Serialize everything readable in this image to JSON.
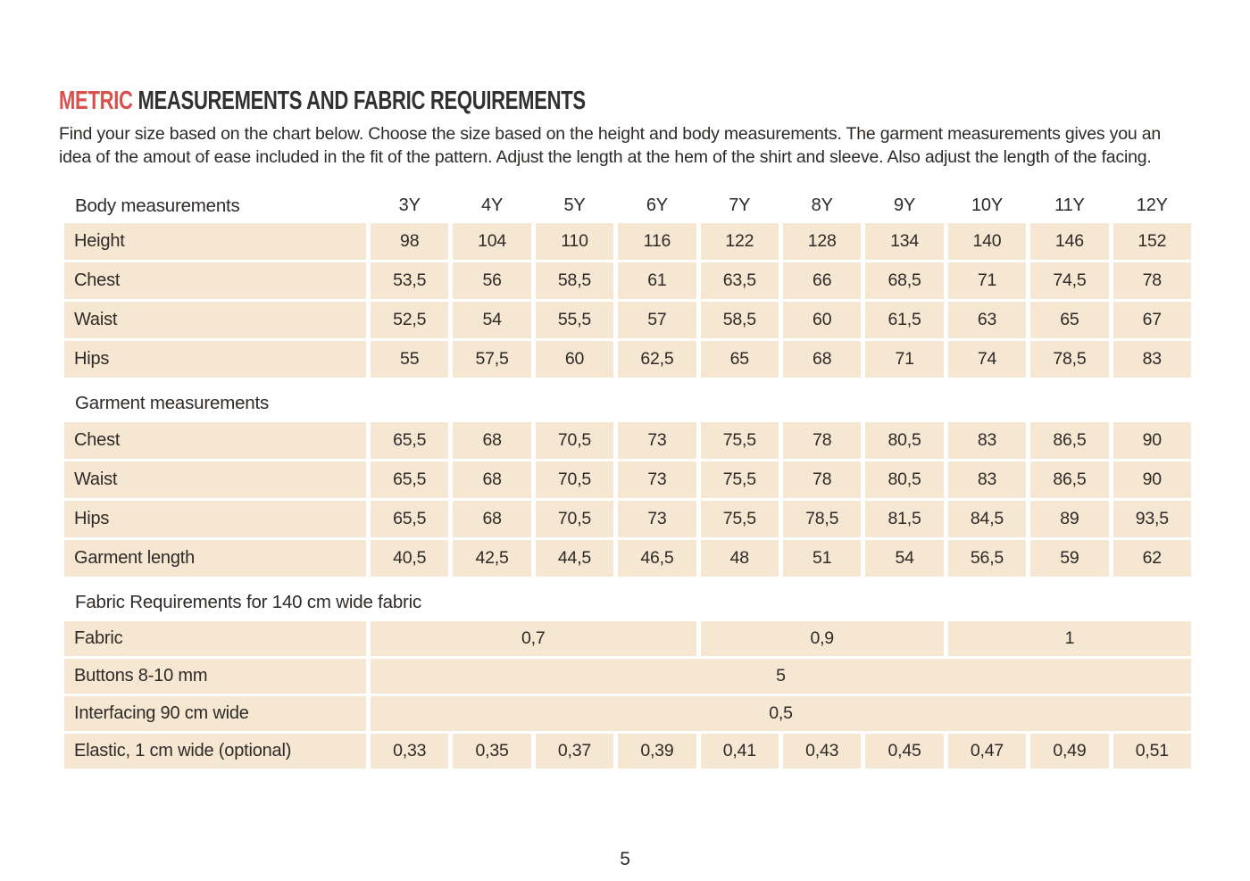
{
  "document": {
    "title": {
      "highlight": "METRIC",
      "rest": " MEASUREMENTS AND FABRIC REQUIREMENTS"
    },
    "intro": "Find your size based on the chart below. Choose the size based on the height and body measurements. The garment measurements gives you an idea of the amout of ease included in the fit of the pattern. Adjust the length at the hem of the shirt and sleeve. Also adjust the length of the facing.",
    "page_number": "5"
  },
  "sizes": [
    "3Y",
    "4Y",
    "5Y",
    "6Y",
    "7Y",
    "8Y",
    "9Y",
    "10Y",
    "11Y",
    "12Y"
  ],
  "body_section": {
    "header": "Body measurements",
    "rows": [
      {
        "label": "Height",
        "values": [
          "98",
          "104",
          "110",
          "116",
          "122",
          "128",
          "134",
          "140",
          "146",
          "152"
        ]
      },
      {
        "label": "Chest",
        "values": [
          "53,5",
          "56",
          "58,5",
          "61",
          "63,5",
          "66",
          "68,5",
          "71",
          "74,5",
          "78"
        ]
      },
      {
        "label": "Waist",
        "values": [
          "52,5",
          "54",
          "55,5",
          "57",
          "58,5",
          "60",
          "61,5",
          "63",
          "65",
          "67"
        ]
      },
      {
        "label": "Hips",
        "values": [
          "55",
          "57,5",
          "60",
          "62,5",
          "65",
          "68",
          "71",
          "74",
          "78,5",
          "83"
        ]
      }
    ]
  },
  "garment_section": {
    "header": "Garment measurements",
    "rows": [
      {
        "label": "Chest",
        "values": [
          "65,5",
          "68",
          "70,5",
          "73",
          "75,5",
          "78",
          "80,5",
          "83",
          "86,5",
          "90"
        ]
      },
      {
        "label": "Waist",
        "values": [
          "65,5",
          "68",
          "70,5",
          "73",
          "75,5",
          "78",
          "80,5",
          "83",
          "86,5",
          "90"
        ]
      },
      {
        "label": "Hips",
        "values": [
          "65,5",
          "68",
          "70,5",
          "73",
          "75,5",
          "78,5",
          "81,5",
          "84,5",
          "89",
          "93,5"
        ]
      },
      {
        "label": "Garment length",
        "values": [
          "40,5",
          "42,5",
          "44,5",
          "46,5",
          "48",
          "51",
          "54",
          "56,5",
          "59",
          "62"
        ]
      }
    ]
  },
  "fabric_section": {
    "header": "Fabric Requirements for 140 cm wide fabric",
    "rows": [
      {
        "label": "Fabric",
        "cells": [
          {
            "span": 4,
            "value": "0,7"
          },
          {
            "span": 3,
            "value": "0,9"
          },
          {
            "span": 3,
            "value": "1"
          }
        ]
      },
      {
        "label": "Buttons 8-10 mm",
        "cells": [
          {
            "span": 10,
            "value": "5"
          }
        ]
      },
      {
        "label": "Interfacing 90 cm wide",
        "cells": [
          {
            "span": 10,
            "value": "0,5"
          }
        ]
      },
      {
        "label": "Elastic, 1 cm wide (optional)",
        "cells": [
          {
            "span": 1,
            "value": "0,33"
          },
          {
            "span": 1,
            "value": "0,35"
          },
          {
            "span": 1,
            "value": "0,37"
          },
          {
            "span": 1,
            "value": "0,39"
          },
          {
            "span": 1,
            "value": "0,41"
          },
          {
            "span": 1,
            "value": "0,43"
          },
          {
            "span": 1,
            "value": "0,45"
          },
          {
            "span": 1,
            "value": "0,47"
          },
          {
            "span": 1,
            "value": "0,49"
          },
          {
            "span": 1,
            "value": "0,51"
          }
        ]
      }
    ]
  },
  "colors": {
    "accent": "#d8514d",
    "cell_bg": "#f6e7d3",
    "text": "#2e2a27"
  }
}
